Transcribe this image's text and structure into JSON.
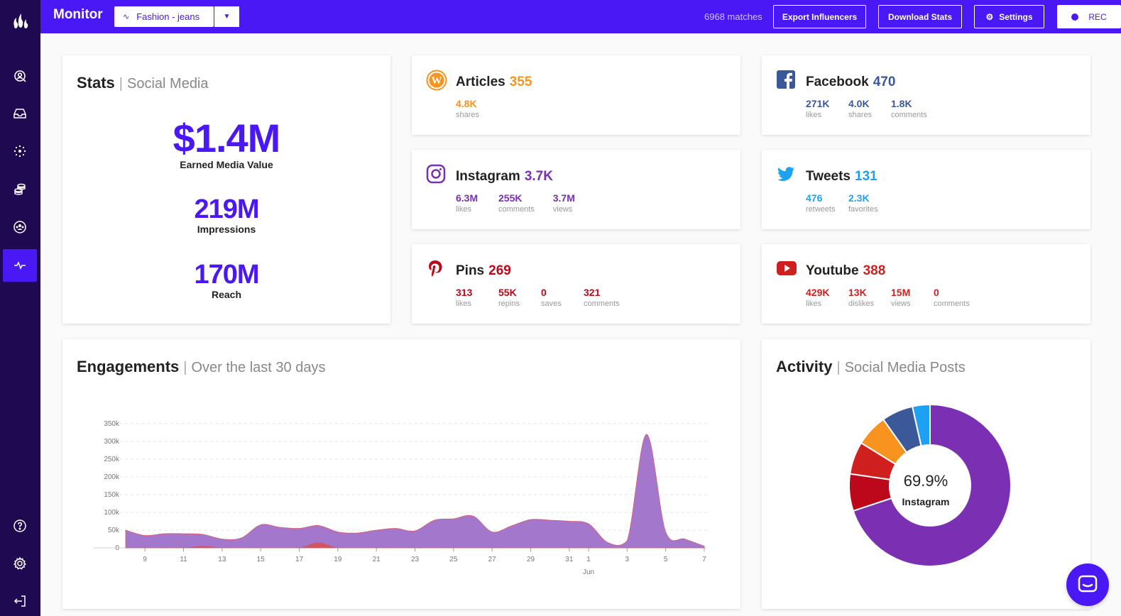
{
  "topbar": {
    "title": "Monitor",
    "project": "Fashion - jeans",
    "matches": "6968 matches",
    "export_label": "Export Influencers",
    "download_label": "Download Stats",
    "settings_label": "Settings",
    "rec_label": "REC"
  },
  "colors": {
    "brand": "#4a18f5",
    "sidebar": "#1f0a52",
    "articles": "#f7931e",
    "instagram": "#7b2fb3",
    "pinterest": "#bd081c",
    "facebook": "#3b5998",
    "twitter": "#1da1f2",
    "youtube": "#d01f1f"
  },
  "sidebar": {
    "items": [
      {
        "icon": "logo-icon"
      },
      {
        "icon": "search-user-icon"
      },
      {
        "icon": "inbox-icon"
      },
      {
        "icon": "network-icon"
      },
      {
        "icon": "coins-icon"
      },
      {
        "icon": "community-icon"
      },
      {
        "icon": "pulse-icon",
        "active": true
      },
      {
        "icon": "help-icon"
      },
      {
        "icon": "settings-icon"
      },
      {
        "icon": "logout-icon"
      }
    ]
  },
  "stats": {
    "title": "Stats",
    "subtitle": "Social Media",
    "emv_value": "$1.4M",
    "emv_label": "Earned Media Value",
    "impressions_value": "219M",
    "impressions_label": "Impressions",
    "reach_value": "170M",
    "reach_label": "Reach"
  },
  "articles": {
    "name": "Articles",
    "count": "355",
    "metrics": [
      {
        "value": "4.8K",
        "label": "shares"
      }
    ]
  },
  "instagram": {
    "name": "Instagram",
    "count": "3.7K",
    "metrics": [
      {
        "value": "6.3M",
        "label": "likes"
      },
      {
        "value": "255K",
        "label": "comments"
      },
      {
        "value": "3.7M",
        "label": "views"
      }
    ]
  },
  "pins": {
    "name": "Pins",
    "count": "269",
    "metrics": [
      {
        "value": "313",
        "label": "likes"
      },
      {
        "value": "55K",
        "label": "repins"
      },
      {
        "value": "0",
        "label": "saves"
      },
      {
        "value": "321",
        "label": "comments"
      }
    ]
  },
  "facebook": {
    "name": "Facebook",
    "count": "470",
    "metrics": [
      {
        "value": "271K",
        "label": "likes"
      },
      {
        "value": "4.0K",
        "label": "shares"
      },
      {
        "value": "1.8K",
        "label": "comments"
      }
    ]
  },
  "tweets": {
    "name": "Tweets",
    "count": "131",
    "metrics": [
      {
        "value": "476",
        "label": "retweets"
      },
      {
        "value": "2.3K",
        "label": "favorites"
      }
    ]
  },
  "youtube": {
    "name": "Youtube",
    "count": "388",
    "metrics": [
      {
        "value": "429K",
        "label": "likes"
      },
      {
        "value": "13K",
        "label": "dislikes"
      },
      {
        "value": "15M",
        "label": "views"
      },
      {
        "value": "0",
        "label": "comments"
      }
    ]
  },
  "engagements": {
    "title": "Engagements",
    "subtitle": "Over the last 30 days"
  },
  "activity": {
    "title": "Activity",
    "subtitle": "Social Media Posts",
    "center_value": "69.9%",
    "center_label": "Instagram"
  },
  "chart_data": [
    {
      "type": "area",
      "title": "",
      "x": [
        "8",
        "9",
        "10",
        "11",
        "12",
        "13",
        "14",
        "15",
        "16",
        "17",
        "18",
        "19",
        "20",
        "21",
        "22",
        "23",
        "24",
        "25",
        "26",
        "27",
        "28",
        "29",
        "30",
        "31",
        "1",
        "2",
        "3",
        "4",
        "5",
        "6",
        "7"
      ],
      "tick_labels": [
        "9",
        "11",
        "13",
        "15",
        "17",
        "19",
        "21",
        "23",
        "25",
        "27",
        "29",
        "31",
        "1",
        "3",
        "5",
        "7"
      ],
      "month_label": "Jun",
      "yticks": [
        "0",
        "50k",
        "100k",
        "150k",
        "200k",
        "250k",
        "300k",
        "350k"
      ],
      "ylim": [
        0,
        350000
      ],
      "grid": true,
      "series": [
        {
          "values": [
            50000,
            35000,
            40000,
            40000,
            38000,
            25000,
            28000,
            65000,
            58000,
            55000,
            63000,
            45000,
            42000,
            50000,
            55000,
            48000,
            78000,
            82000,
            90000,
            45000,
            62000,
            80000,
            78000,
            75000,
            68000,
            15000,
            20000,
            320000,
            45000,
            25000,
            5000
          ]
        },
        {
          "values": [
            0,
            0,
            0,
            0,
            5000,
            0,
            0,
            0,
            0,
            0,
            15000,
            0,
            0,
            0,
            0,
            0,
            0,
            0,
            0,
            0,
            0,
            0,
            0,
            0,
            0,
            0,
            0,
            0,
            0,
            0,
            0
          ]
        }
      ]
    },
    {
      "type": "pie",
      "categories": [
        "Instagram",
        "Pins",
        "Youtube",
        "Articles",
        "Facebook",
        "Tweets"
      ],
      "values": [
        69.9,
        7.4,
        6.5,
        6.4,
        6.3,
        3.5
      ]
    }
  ]
}
